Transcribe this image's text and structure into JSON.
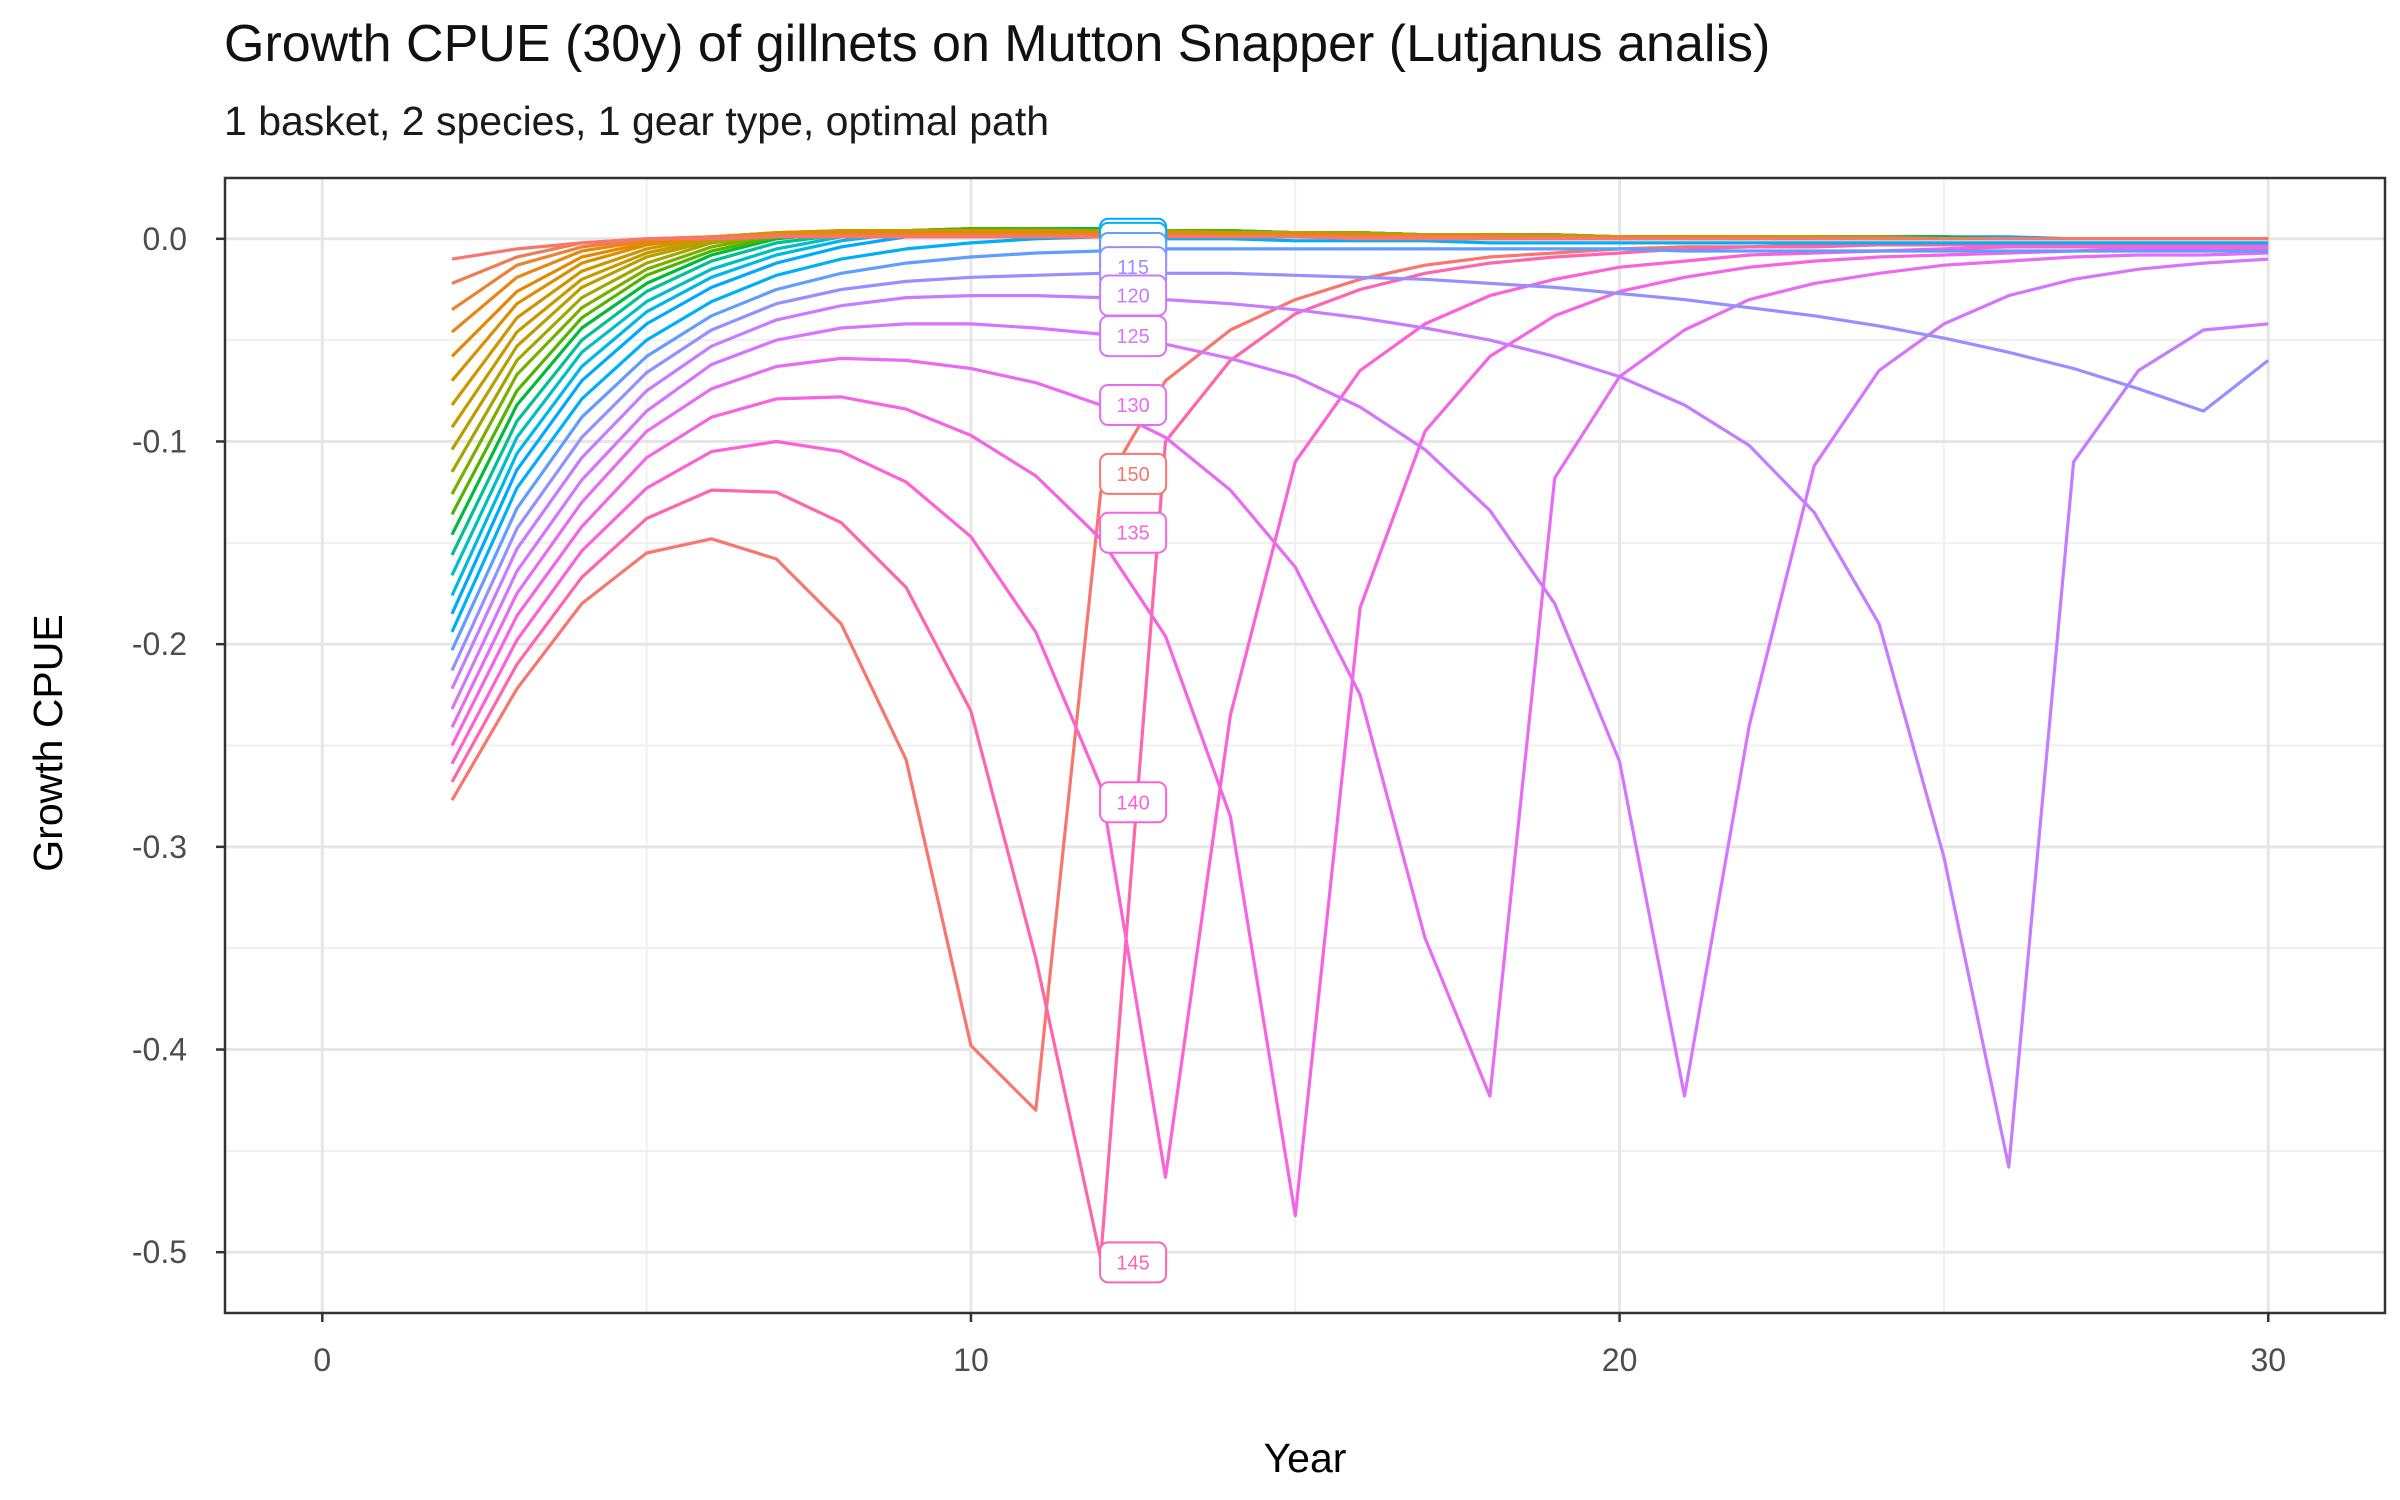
{
  "chart_data": {
    "type": "line",
    "title": "Growth CPUE (30y) of gillnets on Mutton Snapper (Lutjanus analis)",
    "subtitle": "1 basket, 2 species, 1 gear type, optimal path",
    "xlabel": "Year",
    "ylabel": "Growth CPUE",
    "xlim": [
      -1.5,
      31.8
    ],
    "ylim": [
      -0.53,
      0.03
    ],
    "x_ticks": [
      0,
      10,
      20,
      30
    ],
    "x_tick_labels": [
      "0",
      "10",
      "20",
      "30"
    ],
    "y_ticks": [
      0.0,
      -0.1,
      -0.2,
      -0.3,
      -0.4,
      -0.5
    ],
    "y_tick_labels": [
      "0.0",
      "-0.1",
      "-0.2",
      "-0.3",
      "-0.4",
      "-0.5"
    ],
    "grid": true,
    "legend": "none",
    "label_x": 12.5,
    "x": [
      2,
      3,
      4,
      5,
      6,
      7,
      8,
      9,
      10,
      11,
      12,
      13,
      14,
      15,
      16,
      17,
      18,
      19,
      20,
      21,
      22,
      23,
      24,
      25,
      26,
      27,
      28,
      29,
      30
    ],
    "series": [
      {
        "name": "150",
        "color": "#F8766D",
        "label_y": -0.116,
        "values": [
          -0.277,
          -0.222,
          -0.18,
          -0.155,
          -0.148,
          -0.158,
          -0.19,
          -0.257,
          -0.398,
          -0.43,
          -0.125,
          -0.07,
          -0.045,
          -0.03,
          -0.02,
          -0.013,
          -0.009,
          -0.007,
          -0.005,
          -0.004,
          -0.004,
          -0.003,
          -0.003,
          -0.003,
          -0.003,
          -0.003,
          -0.003,
          -0.003,
          -0.003
        ]
      },
      {
        "name": "145",
        "color": "#FF65AC",
        "label_y": -0.505,
        "values": [
          -0.268,
          -0.21,
          -0.167,
          -0.138,
          -0.124,
          -0.125,
          -0.14,
          -0.172,
          -0.233,
          -0.355,
          -0.503,
          -0.1,
          -0.06,
          -0.037,
          -0.025,
          -0.017,
          -0.012,
          -0.009,
          -0.007,
          -0.005,
          -0.004,
          -0.004,
          -0.003,
          -0.003,
          -0.003,
          -0.003,
          -0.003,
          -0.003,
          -0.003
        ]
      },
      {
        "name": "140",
        "color": "#FC61D5",
        "label_y": -0.278,
        "values": [
          -0.259,
          -0.198,
          -0.154,
          -0.123,
          -0.105,
          -0.1,
          -0.105,
          -0.12,
          -0.147,
          -0.194,
          -0.27,
          -0.463,
          -0.235,
          -0.11,
          -0.065,
          -0.042,
          -0.028,
          -0.02,
          -0.014,
          -0.011,
          -0.008,
          -0.007,
          -0.006,
          -0.005,
          -0.004,
          -0.004,
          -0.004,
          -0.004,
          -0.004
        ]
      },
      {
        "name": "135",
        "color": "#F564E3",
        "label_y": -0.145,
        "values": [
          -0.25,
          -0.186,
          -0.142,
          -0.108,
          -0.088,
          -0.079,
          -0.078,
          -0.084,
          -0.097,
          -0.117,
          -0.148,
          -0.196,
          -0.285,
          -0.482,
          -0.182,
          -0.095,
          -0.058,
          -0.038,
          -0.026,
          -0.019,
          -0.014,
          -0.011,
          -0.009,
          -0.008,
          -0.007,
          -0.006,
          -0.005,
          -0.005,
          -0.005
        ]
      },
      {
        "name": "130",
        "color": "#E76BF3",
        "label_y": -0.082,
        "values": [
          -0.241,
          -0.175,
          -0.13,
          -0.095,
          -0.074,
          -0.063,
          -0.059,
          -0.06,
          -0.064,
          -0.071,
          -0.082,
          -0.098,
          -0.124,
          -0.162,
          -0.225,
          -0.345,
          -0.423,
          -0.118,
          -0.068,
          -0.045,
          -0.03,
          -0.022,
          -0.017,
          -0.013,
          -0.011,
          -0.009,
          -0.008,
          -0.008,
          -0.007
        ]
      },
      {
        "name": "125",
        "color": "#D575FE",
        "label_y": -0.048,
        "values": [
          -0.232,
          -0.164,
          -0.119,
          -0.085,
          -0.062,
          -0.05,
          -0.044,
          -0.042,
          -0.042,
          -0.044,
          -0.047,
          -0.052,
          -0.059,
          -0.068,
          -0.083,
          -0.104,
          -0.134,
          -0.18,
          -0.258,
          -0.423,
          -0.24,
          -0.112,
          -0.065,
          -0.042,
          -0.028,
          -0.02,
          -0.015,
          -0.012,
          -0.01
        ]
      },
      {
        "name": "120",
        "color": "#C77CFF",
        "label_y": -0.028,
        "values": [
          -0.222,
          -0.153,
          -0.108,
          -0.075,
          -0.053,
          -0.04,
          -0.033,
          -0.029,
          -0.028,
          -0.028,
          -0.029,
          -0.03,
          -0.032,
          -0.035,
          -0.039,
          -0.044,
          -0.05,
          -0.058,
          -0.068,
          -0.082,
          -0.102,
          -0.135,
          -0.19,
          -0.305,
          -0.458,
          -0.11,
          -0.065,
          -0.045,
          -0.042
        ]
      },
      {
        "name": "115",
        "color": "#9590FF",
        "label_y": -0.014,
        "values": [
          -0.213,
          -0.143,
          -0.098,
          -0.066,
          -0.045,
          -0.032,
          -0.025,
          -0.021,
          -0.019,
          -0.018,
          -0.017,
          -0.017,
          -0.017,
          -0.018,
          -0.019,
          -0.02,
          -0.022,
          -0.024,
          -0.027,
          -0.03,
          -0.034,
          -0.038,
          -0.043,
          -0.049,
          -0.056,
          -0.064,
          -0.074,
          -0.085,
          -0.06
        ]
      },
      {
        "name": "110",
        "color": "#619CFF",
        "label_y": -0.007,
        "values": [
          -0.203,
          -0.133,
          -0.088,
          -0.058,
          -0.038,
          -0.025,
          -0.017,
          -0.012,
          -0.009,
          -0.007,
          -0.006,
          -0.005,
          -0.005,
          -0.005,
          -0.005,
          -0.005,
          -0.005,
          -0.005,
          -0.005,
          -0.006,
          -0.006,
          -0.006,
          -0.006,
          -0.006,
          -0.006,
          -0.006,
          -0.006,
          -0.006,
          -0.006
        ]
      },
      {
        "name": "105",
        "color": "#00B0F6",
        "label_y": -0.002,
        "values": [
          -0.194,
          -0.123,
          -0.079,
          -0.05,
          -0.031,
          -0.018,
          -0.01,
          -0.005,
          -0.002,
          0.0,
          0.001,
          0.0,
          0.0,
          -0.001,
          -0.001,
          -0.001,
          -0.002,
          -0.002,
          -0.002,
          -0.002,
          -0.002,
          -0.002,
          -0.002,
          -0.002,
          -0.002,
          -0.002,
          -0.002,
          -0.002,
          -0.002
        ]
      },
      {
        "name": "100",
        "color": "#00A9FF",
        "label_y": 0.0,
        "values": [
          -0.185,
          -0.114,
          -0.07,
          -0.042,
          -0.024,
          -0.012,
          -0.004,
          0.001,
          0.003,
          0.004,
          0.004,
          0.004,
          0.003,
          0.003,
          0.003,
          0.002,
          0.002,
          0.002,
          0.001,
          0.001,
          0.001,
          0.001,
          0.001,
          0.001,
          0.001,
          0.0,
          0.0,
          0.0,
          0.0
        ]
      },
      {
        "name": "",
        "color": "#00B8E7",
        "label_y": null,
        "values": [
          -0.176,
          -0.106,
          -0.063,
          -0.036,
          -0.019,
          -0.008,
          -0.001,
          0.003,
          0.004,
          0.005,
          0.005,
          0.004,
          0.004,
          0.003,
          0.003,
          0.002,
          0.002,
          0.002,
          0.001,
          0.001,
          0.001,
          0.001,
          0.001,
          0.001,
          0.0,
          0.0,
          0.0,
          0.0,
          0.0
        ]
      },
      {
        "name": "",
        "color": "#00BFC4",
        "label_y": null,
        "values": [
          -0.166,
          -0.098,
          -0.056,
          -0.031,
          -0.015,
          -0.005,
          0.001,
          0.004,
          0.005,
          0.005,
          0.005,
          0.004,
          0.004,
          0.003,
          0.003,
          0.002,
          0.002,
          0.002,
          0.001,
          0.001,
          0.001,
          0.001,
          0.001,
          0.001,
          0.0,
          0.0,
          0.0,
          0.0,
          0.0
        ]
      },
      {
        "name": "",
        "color": "#00C094",
        "label_y": null,
        "values": [
          -0.156,
          -0.09,
          -0.05,
          -0.026,
          -0.011,
          -0.002,
          0.002,
          0.004,
          0.005,
          0.005,
          0.005,
          0.004,
          0.004,
          0.003,
          0.003,
          0.002,
          0.002,
          0.002,
          0.001,
          0.001,
          0.001,
          0.001,
          0.001,
          0.001,
          0.0,
          0.0,
          0.0,
          0.0,
          0.0
        ]
      },
      {
        "name": "",
        "color": "#00BA38",
        "label_y": null,
        "values": [
          -0.146,
          -0.082,
          -0.044,
          -0.022,
          -0.008,
          0.0,
          0.003,
          0.004,
          0.005,
          0.005,
          0.005,
          0.004,
          0.004,
          0.003,
          0.003,
          0.002,
          0.002,
          0.002,
          0.001,
          0.001,
          0.001,
          0.001,
          0.001,
          0.001,
          0.0,
          0.0,
          0.0,
          0.0,
          0.0
        ]
      },
      {
        "name": "",
        "color": "#53B400",
        "label_y": null,
        "values": [
          -0.136,
          -0.075,
          -0.039,
          -0.018,
          -0.006,
          0.001,
          0.003,
          0.004,
          0.005,
          0.005,
          0.004,
          0.004,
          0.004,
          0.003,
          0.003,
          0.002,
          0.002,
          0.002,
          0.001,
          0.001,
          0.001,
          0.001,
          0.001,
          0.0,
          0.0,
          0.0,
          0.0,
          0.0,
          0.0
        ]
      },
      {
        "name": "",
        "color": "#7CAE00",
        "label_y": null,
        "values": [
          -0.126,
          -0.067,
          -0.034,
          -0.015,
          -0.004,
          0.002,
          0.004,
          0.004,
          0.004,
          0.004,
          0.004,
          0.004,
          0.003,
          0.003,
          0.003,
          0.002,
          0.002,
          0.002,
          0.001,
          0.001,
          0.001,
          0.001,
          0.001,
          0.0,
          0.0,
          0.0,
          0.0,
          0.0,
          0.0
        ]
      },
      {
        "name": "",
        "color": "#A3A500",
        "label_y": null,
        "values": [
          -0.115,
          -0.06,
          -0.029,
          -0.012,
          -0.002,
          0.002,
          0.004,
          0.004,
          0.004,
          0.004,
          0.004,
          0.004,
          0.003,
          0.003,
          0.003,
          0.002,
          0.002,
          0.002,
          0.001,
          0.001,
          0.001,
          0.001,
          0.001,
          0.0,
          0.0,
          0.0,
          0.0,
          0.0,
          0.0
        ]
      },
      {
        "name": "",
        "color": "#B79F00",
        "label_y": null,
        "values": [
          -0.104,
          -0.053,
          -0.024,
          -0.009,
          -0.001,
          0.003,
          0.004,
          0.004,
          0.004,
          0.004,
          0.004,
          0.003,
          0.003,
          0.003,
          0.002,
          0.002,
          0.002,
          0.001,
          0.001,
          0.001,
          0.001,
          0.001,
          0.0,
          0.0,
          0.0,
          0.0,
          0.0,
          0.0,
          0.0
        ]
      },
      {
        "name": "",
        "color": "#C49A00",
        "label_y": null,
        "values": [
          -0.093,
          -0.046,
          -0.02,
          -0.007,
          0.0,
          0.003,
          0.004,
          0.004,
          0.004,
          0.004,
          0.003,
          0.003,
          0.003,
          0.003,
          0.002,
          0.002,
          0.002,
          0.001,
          0.001,
          0.001,
          0.001,
          0.001,
          0.0,
          0.0,
          0.0,
          0.0,
          0.0,
          0.0,
          0.0
        ]
      },
      {
        "name": "",
        "color": "#CD9600",
        "label_y": null,
        "values": [
          -0.082,
          -0.039,
          -0.016,
          -0.005,
          0.001,
          0.003,
          0.004,
          0.004,
          0.004,
          0.003,
          0.003,
          0.003,
          0.003,
          0.002,
          0.002,
          0.002,
          0.002,
          0.001,
          0.001,
          0.001,
          0.001,
          0.0,
          0.0,
          0.0,
          0.0,
          0.0,
          0.0,
          0.0,
          0.0
        ]
      },
      {
        "name": "",
        "color": "#D89000",
        "label_y": null,
        "values": [
          -0.07,
          -0.032,
          -0.012,
          -0.003,
          0.001,
          0.003,
          0.003,
          0.003,
          0.003,
          0.003,
          0.003,
          0.003,
          0.002,
          0.002,
          0.002,
          0.002,
          0.001,
          0.001,
          0.001,
          0.001,
          0.001,
          0.0,
          0.0,
          0.0,
          0.0,
          0.0,
          0.0,
          0.0,
          0.0
        ]
      },
      {
        "name": "",
        "color": "#E58700",
        "label_y": null,
        "values": [
          -0.058,
          -0.026,
          -0.009,
          -0.002,
          0.001,
          0.002,
          0.003,
          0.003,
          0.003,
          0.003,
          0.003,
          0.002,
          0.002,
          0.002,
          0.002,
          0.001,
          0.001,
          0.001,
          0.001,
          0.001,
          0.0,
          0.0,
          0.0,
          0.0,
          0.0,
          0.0,
          0.0,
          0.0,
          0.0
        ]
      },
      {
        "name": "",
        "color": "#E68613",
        "label_y": null,
        "values": [
          -0.046,
          -0.019,
          -0.006,
          -0.001,
          0.001,
          0.002,
          0.002,
          0.002,
          0.002,
          0.002,
          0.002,
          0.002,
          0.002,
          0.002,
          0.001,
          0.001,
          0.001,
          0.001,
          0.001,
          0.0,
          0.0,
          0.0,
          0.0,
          0.0,
          0.0,
          0.0,
          0.0,
          0.0,
          0.0
        ]
      },
      {
        "name": "",
        "color": "#EA8331",
        "label_y": null,
        "values": [
          -0.035,
          -0.013,
          -0.004,
          0.0,
          0.001,
          0.002,
          0.002,
          0.002,
          0.002,
          0.002,
          0.002,
          0.002,
          0.001,
          0.001,
          0.001,
          0.001,
          0.001,
          0.001,
          0.0,
          0.0,
          0.0,
          0.0,
          0.0,
          0.0,
          0.0,
          0.0,
          0.0,
          0.0,
          0.0
        ]
      },
      {
        "name": "",
        "color": "#F07C52",
        "label_y": null,
        "values": [
          -0.022,
          -0.009,
          -0.002,
          0.0,
          0.001,
          0.001,
          0.001,
          0.001,
          0.001,
          0.001,
          0.001,
          0.001,
          0.001,
          0.001,
          0.001,
          0.001,
          0.0,
          0.0,
          0.0,
          0.0,
          0.0,
          0.0,
          0.0,
          0.0,
          0.0,
          0.0,
          0.0,
          0.0,
          0.0
        ]
      },
      {
        "name": "",
        "color": "#F8766D",
        "label_y": null,
        "values": [
          -0.01,
          -0.005,
          -0.002,
          0.0,
          0.0,
          0.001,
          0.001,
          0.001,
          0.001,
          0.001,
          0.001,
          0.001,
          0.001,
          0.001,
          0.0,
          0.0,
          0.0,
          0.0,
          0.0,
          0.0,
          0.0,
          0.0,
          0.0,
          0.0,
          0.0,
          0.0,
          0.0,
          0.0,
          0.0
        ]
      }
    ]
  }
}
